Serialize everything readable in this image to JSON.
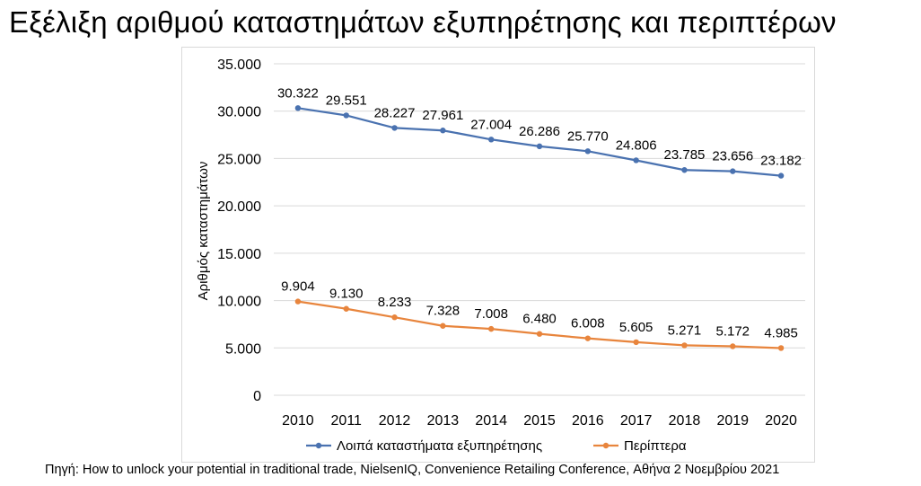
{
  "page": {
    "title": "Εξέλιξη αριθμού καταστημάτων εξυπηρέτησης και περιπτέρων",
    "source": "Πηγή: How to unlock your potential in traditional trade, NielsenIQ, Convenience Retailing Conference, Αθήνα 2 Νοεμβρίου 2021"
  },
  "chart_data": {
    "type": "line",
    "title": "Εξέλιξη αριθμού καταστημάτων εξυπηρέτησης και περιπτέρων",
    "xlabel": "",
    "ylabel": "Αριθμός καταστημάτων",
    "categories": [
      "2010",
      "2011",
      "2012",
      "2013",
      "2014",
      "2015",
      "2016",
      "2017",
      "2018",
      "2019",
      "2020"
    ],
    "ylim": [
      0,
      35000
    ],
    "yticks": [
      0,
      5000,
      10000,
      15000,
      20000,
      25000,
      30000,
      35000
    ],
    "ytick_labels": [
      "0",
      "5.000",
      "10.000",
      "15.000",
      "20.000",
      "25.000",
      "30.000",
      "35.000"
    ],
    "grid": true,
    "legend_position": "bottom",
    "series": [
      {
        "name": "Λοιπά καταστήματα εξυπηρέτησης",
        "color": "#4a72b0",
        "values": [
          30322,
          29551,
          28227,
          27961,
          27004,
          26286,
          25770,
          24806,
          23785,
          23656,
          23182
        ],
        "labels": [
          "30.322",
          "29.551",
          "28.227",
          "27.961",
          "27.004",
          "26.286",
          "25.770",
          "24.806",
          "23.785",
          "23.656",
          "23.182"
        ]
      },
      {
        "name": "Περίπτερα",
        "color": "#e8853d",
        "values": [
          9904,
          9130,
          8233,
          7328,
          7008,
          6480,
          6008,
          5605,
          5271,
          5172,
          4985
        ],
        "labels": [
          "9.904",
          "9.130",
          "8.233",
          "7.328",
          "7.008",
          "6.480",
          "6.008",
          "5.605",
          "5.271",
          "5.172",
          "4.985"
        ]
      }
    ],
    "gridline_color": "#d9d9d9"
  }
}
